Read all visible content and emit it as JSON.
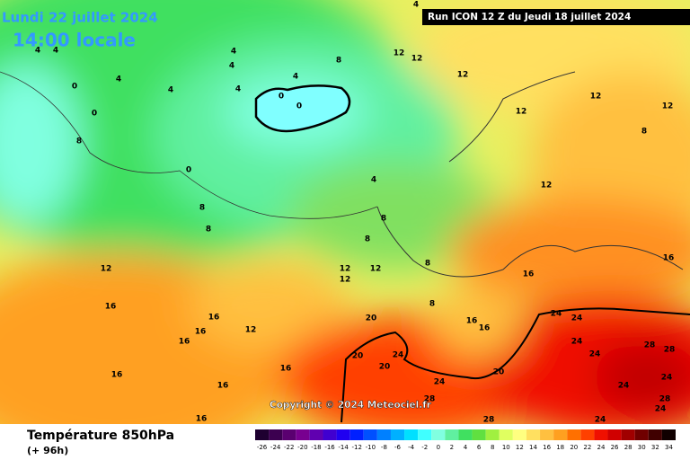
{
  "header": {
    "date": "Lundi 22 juillet 2024",
    "time": "14:00 locale",
    "run": "Run ICON 12 Z du Jeudi 18 juillet 2024"
  },
  "copyright": "Copyright © 2024 Meteociel.fr",
  "footer": {
    "title": "Température 850hPa",
    "subtitle": "(+ 96h)"
  },
  "contour_labels": [
    4,
    4,
    4,
    4,
    4,
    4,
    4,
    4,
    4,
    8,
    12,
    12,
    12,
    0,
    0,
    0,
    0,
    0,
    8,
    4,
    8,
    8,
    8,
    8,
    8,
    8,
    12,
    12,
    12,
    12,
    8,
    12,
    12,
    12,
    12,
    16,
    16,
    16,
    16,
    12,
    16,
    16,
    16,
    16,
    16,
    16,
    20,
    20,
    20,
    24,
    24,
    16,
    16,
    20,
    24,
    24,
    24,
    24,
    28,
    28,
    24,
    24,
    28,
    24,
    24,
    28,
    28
  ],
  "legend": {
    "values": [
      -26,
      -24,
      -22,
      -20,
      -18,
      -16,
      -14,
      -12,
      -10,
      -8,
      -6,
      -4,
      -2,
      0,
      2,
      4,
      6,
      8,
      10,
      12,
      14,
      16,
      18,
      20,
      22,
      24,
      26,
      28,
      30,
      32,
      34
    ],
    "colors": [
      "#1e0030",
      "#3c0050",
      "#5a0070",
      "#780090",
      "#6000b0",
      "#4000d0",
      "#2000f0",
      "#0020ff",
      "#0050ff",
      "#0080ff",
      "#00b0ff",
      "#00e0ff",
      "#40ffff",
      "#80ffe0",
      "#60f0a0",
      "#40e060",
      "#60e040",
      "#a0f040",
      "#e0ff60",
      "#ffff80",
      "#ffe060",
      "#ffc040",
      "#ffa020",
      "#ff7000",
      "#ff4000",
      "#f01000",
      "#d00000",
      "#a00000",
      "#700000",
      "#400000",
      "#100000"
    ]
  }
}
